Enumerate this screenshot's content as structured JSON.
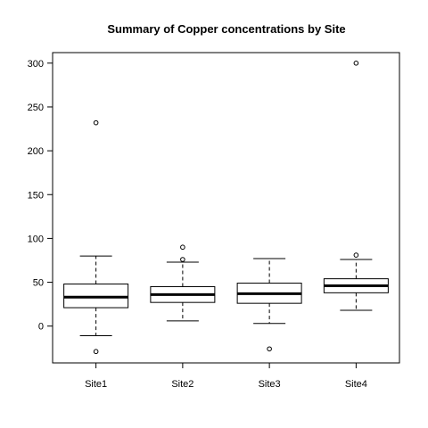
{
  "chart_data": {
    "type": "box",
    "title": "Summary of Copper concentrations by Site",
    "xlabel": "",
    "ylabel": "",
    "ylim": [
      -42,
      312
    ],
    "yticks": [
      0,
      50,
      100,
      150,
      200,
      250,
      300
    ],
    "grid": false,
    "categories": [
      "Site1",
      "Site2",
      "Site3",
      "Site4"
    ],
    "boxes": [
      {
        "category": "Site1",
        "whisker_low": -11,
        "q1": 21,
        "median": 33,
        "q3": 48,
        "whisker_high": 80,
        "outliers": [
          232,
          -29
        ]
      },
      {
        "category": "Site2",
        "whisker_low": 6,
        "q1": 27,
        "median": 36,
        "q3": 45,
        "whisker_high": 73,
        "outliers": [
          90,
          76
        ]
      },
      {
        "category": "Site3",
        "whisker_low": 3,
        "q1": 26,
        "median": 37,
        "q3": 49,
        "whisker_high": 77,
        "outliers": [
          -26
        ]
      },
      {
        "category": "Site4",
        "whisker_low": 18,
        "q1": 38,
        "median": 46,
        "q3": 54,
        "whisker_high": 76,
        "outliers": [
          300,
          81
        ]
      }
    ]
  }
}
